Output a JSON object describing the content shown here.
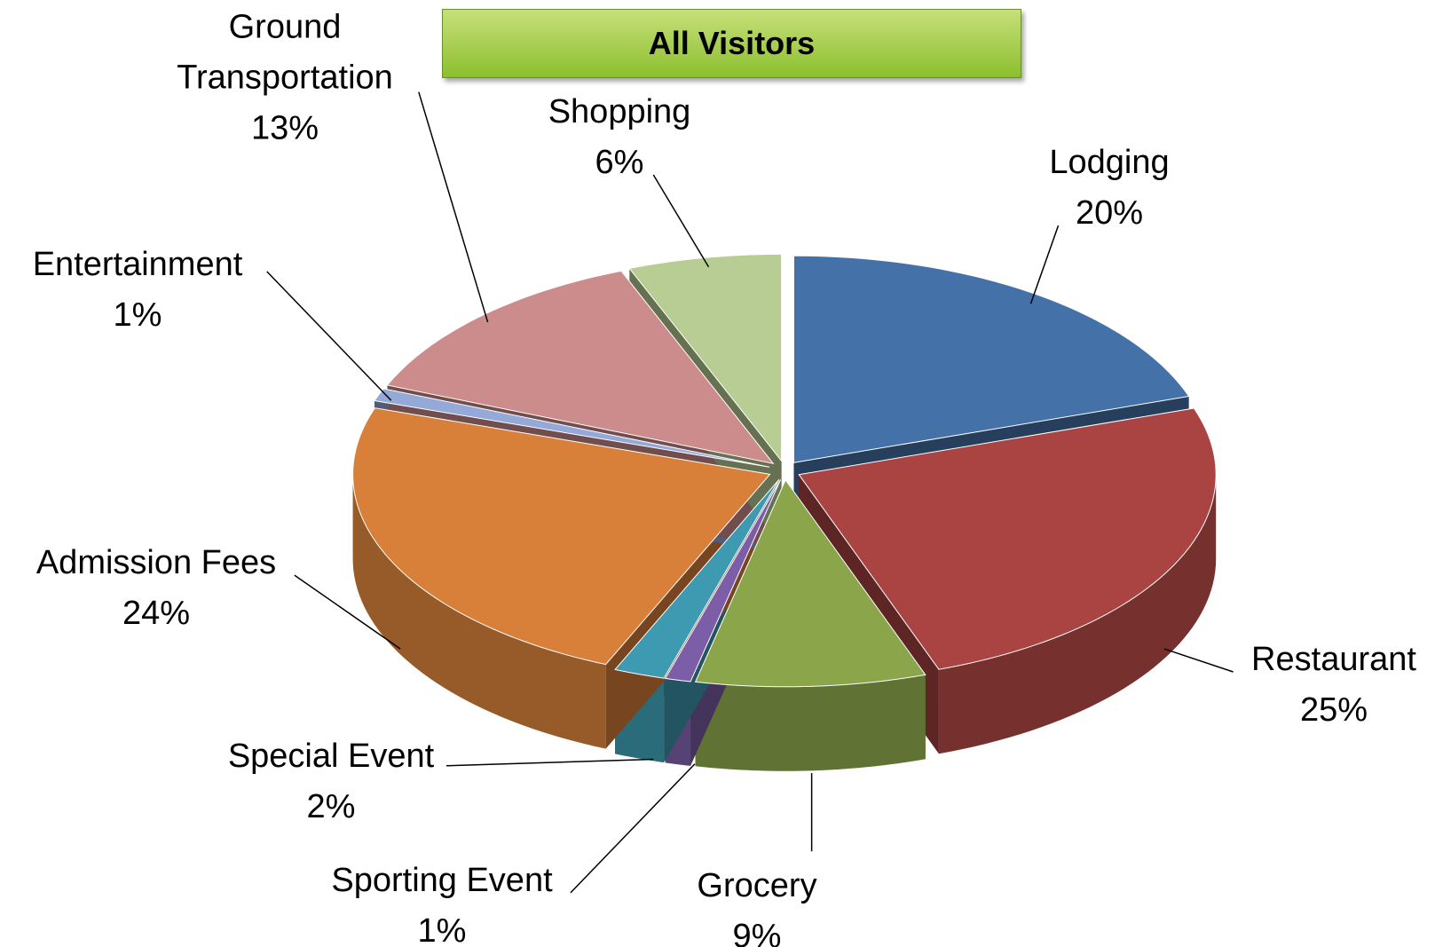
{
  "chart_data": {
    "type": "pie",
    "title": "All Visitors",
    "categories": [
      "Lodging",
      "Restaurant",
      "Grocery",
      "Sporting Event",
      "Special Event",
      "Admission Fees",
      "Entertainment",
      "Ground Transportation",
      "Shopping"
    ],
    "values": [
      20,
      25,
      9,
      1,
      2,
      24,
      1,
      13,
      6
    ],
    "value_labels": [
      "20%",
      "25%",
      "9%",
      "1%",
      "2%",
      "24%",
      "1%",
      "13%",
      "6%"
    ],
    "colors": [
      "#4472a8",
      "#a94442",
      "#8aa54a",
      "#7b5ea7",
      "#3d9ab0",
      "#d8803a",
      "#94a9d8",
      "#cd8c8c",
      "#b8cd94"
    ]
  }
}
